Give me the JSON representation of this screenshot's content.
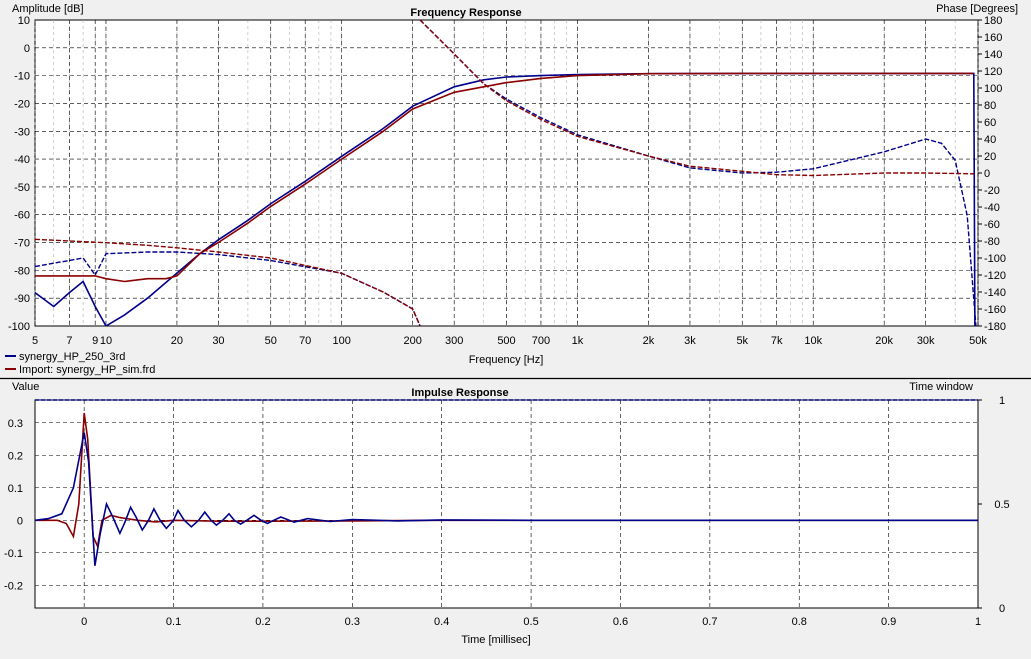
{
  "chart_data": [
    {
      "type": "line",
      "title": "Frequency Response",
      "xlabel": "Frequency [Hz]",
      "ylabel": "Amplitude [dB]",
      "y2label": "Phase [Degrees]",
      "xscale": "log",
      "xlim": [
        5,
        50000
      ],
      "ylim": [
        -100,
        10
      ],
      "y2lim": [
        -180,
        180
      ],
      "grid": true,
      "legend_position": "bottom-left",
      "x_ticks": [
        {
          "v": 5,
          "t": "5"
        },
        {
          "v": 7,
          "t": "7"
        },
        {
          "v": 9,
          "t": "9"
        },
        {
          "v": 10,
          "t": "10"
        },
        {
          "v": 20,
          "t": "20"
        },
        {
          "v": 30,
          "t": "30"
        },
        {
          "v": 50,
          "t": "50"
        },
        {
          "v": 70,
          "t": "70"
        },
        {
          "v": 100,
          "t": "100"
        },
        {
          "v": 200,
          "t": "200"
        },
        {
          "v": 300,
          "t": "300"
        },
        {
          "v": 500,
          "t": "500"
        },
        {
          "v": 700,
          "t": "700"
        },
        {
          "v": 1000,
          "t": "1k"
        },
        {
          "v": 2000,
          "t": "2k"
        },
        {
          "v": 3000,
          "t": "3k"
        },
        {
          "v": 5000,
          "t": "5k"
        },
        {
          "v": 7000,
          "t": "7k"
        },
        {
          "v": 10000,
          "t": "10k"
        },
        {
          "v": 20000,
          "t": "20k"
        },
        {
          "v": 30000,
          "t": "30k"
        },
        {
          "v": 50000,
          "t": "50k"
        }
      ],
      "y_ticks": [
        "10",
        "0",
        "-10",
        "-20",
        "-30",
        "-40",
        "-50",
        "-60",
        "-70",
        "-80",
        "-90",
        "-100"
      ],
      "y2_ticks": [
        "180",
        "160",
        "140",
        "120",
        "100",
        "80",
        "60",
        "40",
        "20",
        "0",
        "-20",
        "-40",
        "-60",
        "-80",
        "-100",
        "-120",
        "-140",
        "-160",
        "-180"
      ],
      "series": [
        {
          "name": "synergy_HP_250_3rd",
          "color": "#00008b",
          "magnitude": [
            [
              5,
              -88
            ],
            [
              6,
              -93
            ],
            [
              7,
              -88
            ],
            [
              8,
              -84
            ],
            [
              9,
              -93
            ],
            [
              10,
              -100
            ],
            [
              12,
              -96
            ],
            [
              15,
              -90
            ],
            [
              20,
              -81
            ],
            [
              25,
              -74
            ],
            [
              30,
              -69
            ],
            [
              40,
              -62
            ],
            [
              50,
              -56
            ],
            [
              70,
              -48
            ],
            [
              100,
              -39
            ],
            [
              150,
              -29
            ],
            [
              200,
              -21
            ],
            [
              300,
              -14
            ],
            [
              400,
              -11.5
            ],
            [
              500,
              -10.5
            ],
            [
              700,
              -10
            ],
            [
              1000,
              -9.6
            ],
            [
              2000,
              -9.3
            ],
            [
              5000,
              -9.2
            ],
            [
              20000,
              -9.2
            ],
            [
              48000,
              -9.2
            ],
            [
              48500,
              -100
            ]
          ],
          "phase": [
            [
              5,
              -110
            ],
            [
              8,
              -100
            ],
            [
              9,
              -120
            ],
            [
              10,
              -95
            ],
            [
              15,
              -93
            ],
            [
              20,
              -93
            ],
            [
              30,
              -96
            ],
            [
              50,
              -103
            ],
            [
              100,
              -118
            ],
            [
              150,
              -140
            ],
            [
              200,
              -160
            ],
            [
              215,
              -180
            ],
            [
              215,
              180
            ],
            [
              300,
              140
            ],
            [
              400,
              105
            ],
            [
              500,
              87
            ],
            [
              700,
              65
            ],
            [
              1000,
              45
            ],
            [
              2000,
              20
            ],
            [
              3000,
              6
            ],
            [
              5000,
              0
            ],
            [
              7000,
              1
            ],
            [
              10000,
              5
            ],
            [
              20000,
              25
            ],
            [
              30000,
              40
            ],
            [
              35000,
              35
            ],
            [
              40000,
              15
            ],
            [
              45000,
              -50
            ],
            [
              49000,
              -180
            ]
          ]
        },
        {
          "name": "Import: synergy_HP_sim.frd",
          "color": "#8b0000",
          "magnitude": [
            [
              5,
              -82
            ],
            [
              7,
              -82
            ],
            [
              9,
              -82
            ],
            [
              10,
              -83
            ],
            [
              12,
              -84
            ],
            [
              15,
              -83
            ],
            [
              18,
              -83
            ],
            [
              20,
              -82
            ],
            [
              25,
              -74
            ],
            [
              30,
              -70
            ],
            [
              40,
              -63
            ],
            [
              50,
              -57
            ],
            [
              70,
              -49
            ],
            [
              100,
              -40
            ],
            [
              150,
              -30
            ],
            [
              200,
              -22
            ],
            [
              300,
              -16
            ],
            [
              400,
              -14
            ],
            [
              500,
              -12.5
            ],
            [
              700,
              -11
            ],
            [
              1000,
              -10
            ],
            [
              2000,
              -9.3
            ],
            [
              5000,
              -9.2
            ],
            [
              20000,
              -9.2
            ],
            [
              48000,
              -9.2
            ]
          ],
          "phase": [
            [
              5,
              -78
            ],
            [
              7,
              -80
            ],
            [
              10,
              -82
            ],
            [
              15,
              -85
            ],
            [
              20,
              -88
            ],
            [
              30,
              -93
            ],
            [
              50,
              -100
            ],
            [
              100,
              -118
            ],
            [
              150,
              -140
            ],
            [
              200,
              -160
            ],
            [
              215,
              -180
            ],
            [
              215,
              180
            ],
            [
              300,
              140
            ],
            [
              400,
              105
            ],
            [
              500,
              85
            ],
            [
              700,
              63
            ],
            [
              1000,
              43
            ],
            [
              2000,
              20
            ],
            [
              3000,
              8
            ],
            [
              5000,
              2
            ],
            [
              7000,
              -2
            ],
            [
              10000,
              -3
            ],
            [
              20000,
              0
            ],
            [
              30000,
              0
            ],
            [
              48000,
              -1
            ]
          ]
        }
      ]
    },
    {
      "type": "line",
      "title": "Impulse Response",
      "xlabel": "Time [millisec]",
      "ylabel": "Value",
      "y2label": "Time window",
      "xlim": [
        -0.055,
        1.0
      ],
      "ylim": [
        -0.27,
        0.37
      ],
      "y2lim": [
        0,
        1
      ],
      "grid": true,
      "x_ticks": [
        "0",
        "0.1",
        "0.2",
        "0.3",
        "0.4",
        "0.5",
        "0.6",
        "0.7",
        "0.8",
        "0.9",
        "1"
      ],
      "y_ticks": [
        "0.3",
        "0.2",
        "0.1",
        "0",
        "-0.1",
        "-0.2"
      ],
      "y2_ticks": [
        "1",
        "0.5",
        "0"
      ],
      "window": [
        [
          -0.055,
          1.0
        ],
        [
          1.0,
          1.0
        ]
      ],
      "series": [
        {
          "name": "synergy_HP_250_3rd",
          "color": "#00008b",
          "values": [
            [
              -0.055,
              0
            ],
            [
              -0.04,
              0.005
            ],
            [
              -0.025,
              0.02
            ],
            [
              -0.012,
              0.1
            ],
            [
              0,
              0.27
            ],
            [
              0.005,
              0.18
            ],
            [
              0.012,
              -0.14
            ],
            [
              0.018,
              -0.04
            ],
            [
              0.025,
              0.05
            ],
            [
              0.032,
              0.01
            ],
            [
              0.04,
              -0.04
            ],
            [
              0.045,
              -0.01
            ],
            [
              0.052,
              0.04
            ],
            [
              0.058,
              0.01
            ],
            [
              0.065,
              -0.03
            ],
            [
              0.072,
              0.0
            ],
            [
              0.078,
              0.035
            ],
            [
              0.085,
              0.0
            ],
            [
              0.092,
              -0.025
            ],
            [
              0.1,
              0.0
            ],
            [
              0.105,
              0.03
            ],
            [
              0.112,
              0.0
            ],
            [
              0.12,
              -0.02
            ],
            [
              0.128,
              0.0
            ],
            [
              0.135,
              0.025
            ],
            [
              0.142,
              0.0
            ],
            [
              0.148,
              -0.015
            ],
            [
              0.155,
              0.0
            ],
            [
              0.162,
              0.02
            ],
            [
              0.168,
              0.0
            ],
            [
              0.175,
              -0.012
            ],
            [
              0.182,
              0.0
            ],
            [
              0.19,
              0.015
            ],
            [
              0.198,
              0.0
            ],
            [
              0.205,
              -0.01
            ],
            [
              0.212,
              0.0
            ],
            [
              0.22,
              0.01
            ],
            [
              0.235,
              -0.006
            ],
            [
              0.25,
              0.005
            ],
            [
              0.275,
              -0.004
            ],
            [
              0.3,
              0.002
            ],
            [
              0.35,
              -0.002
            ],
            [
              0.4,
              0.001
            ],
            [
              0.5,
              0.0
            ],
            [
              0.6,
              0.0
            ],
            [
              0.73,
              0.0
            ],
            [
              1.0,
              0.0
            ]
          ]
        },
        {
          "name": "Import: synergy_HP_sim.frd",
          "color": "#8b0000",
          "values": [
            [
              -0.055,
              0
            ],
            [
              -0.03,
              0.0
            ],
            [
              -0.02,
              -0.01
            ],
            [
              -0.012,
              -0.05
            ],
            [
              -0.006,
              0.05
            ],
            [
              0,
              0.33
            ],
            [
              0.004,
              0.25
            ],
            [
              0.01,
              -0.05
            ],
            [
              0.015,
              -0.08
            ],
            [
              0.02,
              0.0
            ],
            [
              0.03,
              0.015
            ],
            [
              0.04,
              0.008
            ],
            [
              0.06,
              0.0
            ],
            [
              0.08,
              -0.005
            ],
            [
              0.1,
              0.0
            ],
            [
              0.15,
              -0.003
            ],
            [
              0.2,
              -0.003
            ],
            [
              0.3,
              -0.002
            ],
            [
              0.4,
              0.0
            ],
            [
              0.5,
              0.0
            ],
            [
              1.0,
              0.0
            ]
          ]
        }
      ]
    }
  ]
}
